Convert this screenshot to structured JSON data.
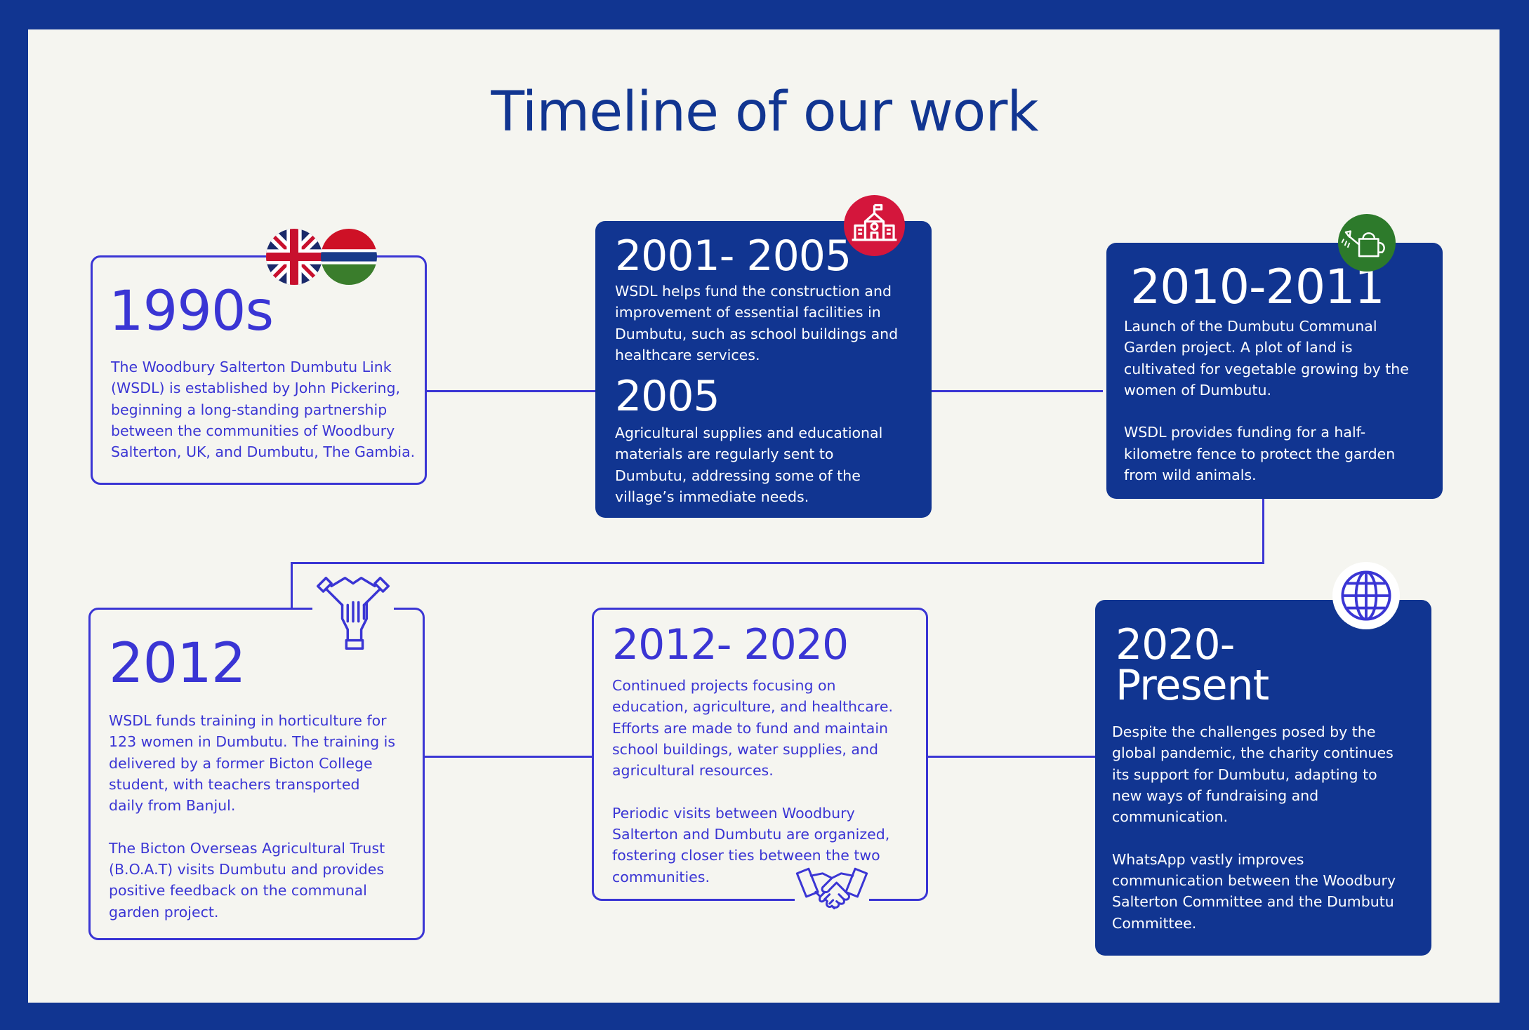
{
  "title": "Timeline of our work",
  "colors": {
    "navy": "#113591",
    "accent": "#3a35d4",
    "background": "#f5f5f0",
    "red_badge": "#d4163c",
    "green_badge": "#2d7a2b"
  },
  "milestones": [
    {
      "year": "1990s",
      "text": "The Woodbury Salterton Dumbutu Link\n(WSDL) is established by John Pickering,\nbeginning a long-standing partnership\nbetween the communities of Woodbury\nSalterton, UK, and Dumbutu, The Gambia.",
      "icons": [
        "uk-flag-icon",
        "gambia-flag-icon"
      ]
    },
    {
      "year": "2001- 2005",
      "text": "WSDL helps fund the construction and\nimprovement of essential facilities in\nDumbutu, such as school buildings and\nhealthcare services.",
      "year2": "2005",
      "text2": "Agricultural supplies and educational\nmaterials are regularly sent to\nDumbutu, addressing some of the\nvillage’s immediate needs.",
      "icons": [
        "school-icon"
      ]
    },
    {
      "year": "2010-2011",
      "text": "Launch of the Dumbutu Communal\nGarden project. A plot of land is\ncultivated for vegetable growing by the\nwomen of Dumbutu.\n\nWSDL provides funding for a half-\nkilometre fence to protect the garden\nfrom wild animals.",
      "icons": [
        "watering-can-icon"
      ]
    },
    {
      "year": "2012",
      "text": "WSDL funds training in horticulture for\n123 women in Dumbutu. The training is\ndelivered by a former Bicton College\nstudent, with teachers transported\ndaily from Banjul.\n\nThe Bicton Overseas Agricultural Trust\n(B.O.A.T) visits Dumbutu and provides\npositive feedback on the communal\ngarden project.",
      "icons": [
        "teamwork-hands-icon"
      ]
    },
    {
      "year": "2012- 2020",
      "text": "Continued projects focusing on\neducation, agriculture, and healthcare.\nEfforts are made to fund and maintain\nschool buildings, water supplies, and\nagricultural resources.\n\nPeriodic visits between Woodbury\nSalterton and Dumbutu are organized,\nfostering closer ties between the two\ncommunities.",
      "icons": [
        "handshake-icon"
      ]
    },
    {
      "year": "2020-\nPresent",
      "text": "Despite the challenges posed by the\nglobal pandemic, the charity continues\nits support for Dumbutu, adapting to\nnew ways of fundraising and\ncommunication.\n\nWhatsApp vastly improves\ncommunication between the Woodbury\nSalterton Committee and the Dumbutu\nCommittee.",
      "icons": [
        "globe-icon"
      ]
    }
  ]
}
